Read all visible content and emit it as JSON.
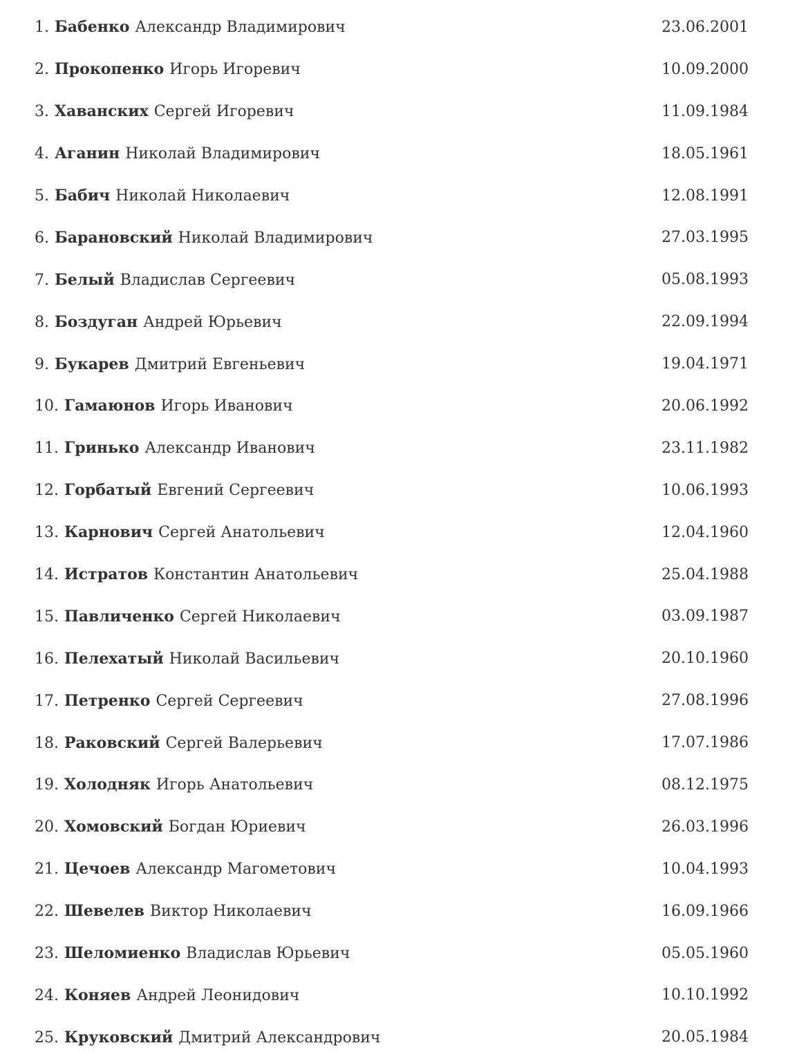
{
  "page": {
    "background_color": "#ffffff",
    "text_color": "#333333",
    "description_labels": {
      "list_kind": "numbered-person-list-with-birth-dates"
    }
  },
  "people": [
    {
      "num": "1.",
      "surname": "Бабенко",
      "given_names": "Александр Владимирович",
      "birth_date": "23.06.2001"
    },
    {
      "num": "2.",
      "surname": "Прокопенко",
      "given_names": "Игорь Игоревич",
      "birth_date": "10.09.2000"
    },
    {
      "num": "3.",
      "surname": "Хаванских",
      "given_names": "Сергей Игоревич",
      "birth_date": "11.09.1984"
    },
    {
      "num": "4.",
      "surname": "Аганин",
      "given_names": "Николай Владимирович",
      "birth_date": "18.05.1961"
    },
    {
      "num": "5.",
      "surname": "Бабич",
      "given_names": "Николай Николаевич",
      "birth_date": "12.08.1991"
    },
    {
      "num": "6.",
      "surname": "Барановский",
      "given_names": "Николай Владимирович",
      "birth_date": "27.03.1995"
    },
    {
      "num": "7.",
      "surname": "Белый",
      "given_names": "Владислав Сергеевич",
      "birth_date": "05.08.1993"
    },
    {
      "num": "8.",
      "surname": "Боздуган",
      "given_names": "Андрей Юрьевич",
      "birth_date": "22.09.1994"
    },
    {
      "num": "9.",
      "surname": "Букарев",
      "given_names": "Дмитрий Евгеньевич",
      "birth_date": "19.04.1971"
    },
    {
      "num": "10.",
      "surname": "Гамаюнов",
      "given_names": "Игорь Иванович",
      "birth_date": "20.06.1992"
    },
    {
      "num": "11.",
      "surname": "Гринько",
      "given_names": "Александр Иванович",
      "birth_date": "23.11.1982"
    },
    {
      "num": "12.",
      "surname": "Горбатый",
      "given_names": "Евгений Сергеевич",
      "birth_date": "10.06.1993"
    },
    {
      "num": "13.",
      "surname": "Карнович",
      "given_names": "Сергей Анатольевич",
      "birth_date": "12.04.1960"
    },
    {
      "num": "14.",
      "surname": "Истратов",
      "given_names": "Константин Анатольевич",
      "birth_date": "25.04.1988"
    },
    {
      "num": "15.",
      "surname": "Павличенко",
      "given_names": "Сергей Николаевич",
      "birth_date": "03.09.1987"
    },
    {
      "num": "16.",
      "surname": "Пелехатый",
      "given_names": "Николай Васильевич",
      "birth_date": "20.10.1960"
    },
    {
      "num": "17.",
      "surname": "Петренко",
      "given_names": "Сергей Сергеевич",
      "birth_date": "27.08.1996"
    },
    {
      "num": "18.",
      "surname": "Раковский",
      "given_names": "Сергей Валерьевич",
      "birth_date": "17.07.1986"
    },
    {
      "num": "19.",
      "surname": "Холодняк",
      "given_names": "Игорь Анатольевич",
      "birth_date": "08.12.1975"
    },
    {
      "num": "20.",
      "surname": "Хомовский",
      "given_names": "Богдан Юриевич",
      "birth_date": "26.03.1996"
    },
    {
      "num": "21.",
      "surname": "Цечоев",
      "given_names": "Александр Магометович",
      "birth_date": "10.04.1993"
    },
    {
      "num": "22.",
      "surname": "Шевелев",
      "given_names": "Виктор Николаевич",
      "birth_date": "16.09.1966"
    },
    {
      "num": "23.",
      "surname": "Шеломиенко",
      "given_names": "Владислав Юрьевич",
      "birth_date": "05.05.1960"
    },
    {
      "num": "24.",
      "surname": "Коняев",
      "given_names": "Андрей Леонидович",
      "birth_date": "10.10.1992"
    },
    {
      "num": "25.",
      "surname": "Круковский",
      "given_names": "Дмитрий Александрович",
      "birth_date": "20.05.1984"
    }
  ]
}
